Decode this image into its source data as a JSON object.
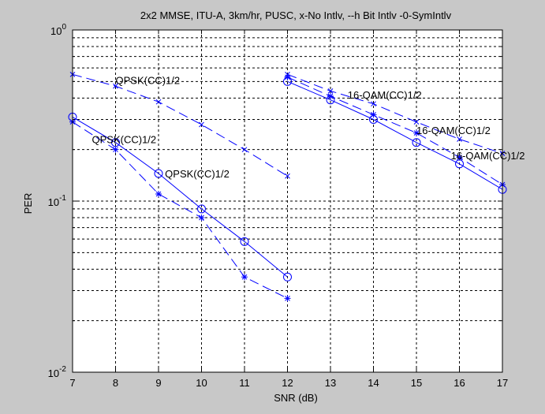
{
  "chart_data": {
    "type": "line",
    "title": "2x2 MMSE, ITU-A, 3km/hr, PUSC, x-No Intlv, --h Bit Intlv -0-SymIntlv",
    "xlabel": "SNR (dB)",
    "ylabel": "PER",
    "xlim": [
      7,
      17
    ],
    "ylim": [
      0.01,
      1
    ],
    "yscale": "log",
    "grid": true,
    "xticks": [
      "7",
      "8",
      "9",
      "10",
      "11",
      "12",
      "13",
      "14",
      "15",
      "16",
      "17"
    ],
    "yticks": [
      {
        "base": "10",
        "exp": "-2",
        "value": 0.01
      },
      {
        "base": "10",
        "exp": "-1",
        "value": 0.1
      },
      {
        "base": "10",
        "exp": "0",
        "value": 1
      }
    ],
    "series": [
      {
        "key": "qpsk-nointlv",
        "marker": "x",
        "dash": "12,6",
        "x": [
          7,
          8,
          9,
          10,
          11,
          12
        ],
        "y": [
          0.55,
          0.47,
          0.38,
          0.28,
          0.2,
          0.14
        ]
      },
      {
        "key": "qpsk-bitintlv",
        "marker": "star",
        "dash": "12,6",
        "x": [
          7,
          8,
          9,
          10,
          11,
          12
        ],
        "y": [
          0.29,
          0.2,
          0.11,
          0.08,
          0.036,
          0.027
        ]
      },
      {
        "key": "qpsk-symintlv",
        "marker": "circle",
        "dash": "",
        "x": [
          7,
          8,
          9,
          10,
          11,
          12
        ],
        "y": [
          0.31,
          0.22,
          0.145,
          0.09,
          0.058,
          0.036
        ]
      },
      {
        "key": "16qam-nointlv",
        "marker": "x",
        "dash": "12,6",
        "x": [
          12,
          13,
          14,
          15,
          16,
          17
        ],
        "y": [
          0.55,
          0.44,
          0.37,
          0.29,
          0.23,
          0.19
        ]
      },
      {
        "key": "16qam-bitintlv",
        "marker": "star",
        "dash": "12,6",
        "x": [
          12,
          13,
          14,
          15,
          16,
          17
        ],
        "y": [
          0.53,
          0.41,
          0.32,
          0.25,
          0.18,
          0.125
        ]
      },
      {
        "key": "16qam-symintlv",
        "marker": "circle",
        "dash": "",
        "x": [
          12,
          13,
          14,
          15,
          16,
          17
        ],
        "y": [
          0.5,
          0.39,
          0.3,
          0.22,
          0.165,
          0.117
        ]
      }
    ],
    "annotations": [
      {
        "text": "QPSK(CC)1/2",
        "x": 8.0,
        "y": 0.51
      },
      {
        "text": "QPSK(CC)1/2",
        "x": 7.45,
        "y": 0.23
      },
      {
        "text": "QPSK(CC)1/2",
        "x": 9.15,
        "y": 0.145
      },
      {
        "text": "16-QAM(CC)1/2",
        "x": 13.4,
        "y": 0.42
      },
      {
        "text": "16-QAM(CC)1/2",
        "x": 15.0,
        "y": 0.26
      },
      {
        "text": "16-QAM(CC)1/2",
        "x": 15.8,
        "y": 0.185
      }
    ],
    "colors": {
      "line": "#0000ff",
      "grid": "#000000",
      "axes_bg": "#ffffff",
      "figure_bg": "#c8c8c8"
    }
  }
}
